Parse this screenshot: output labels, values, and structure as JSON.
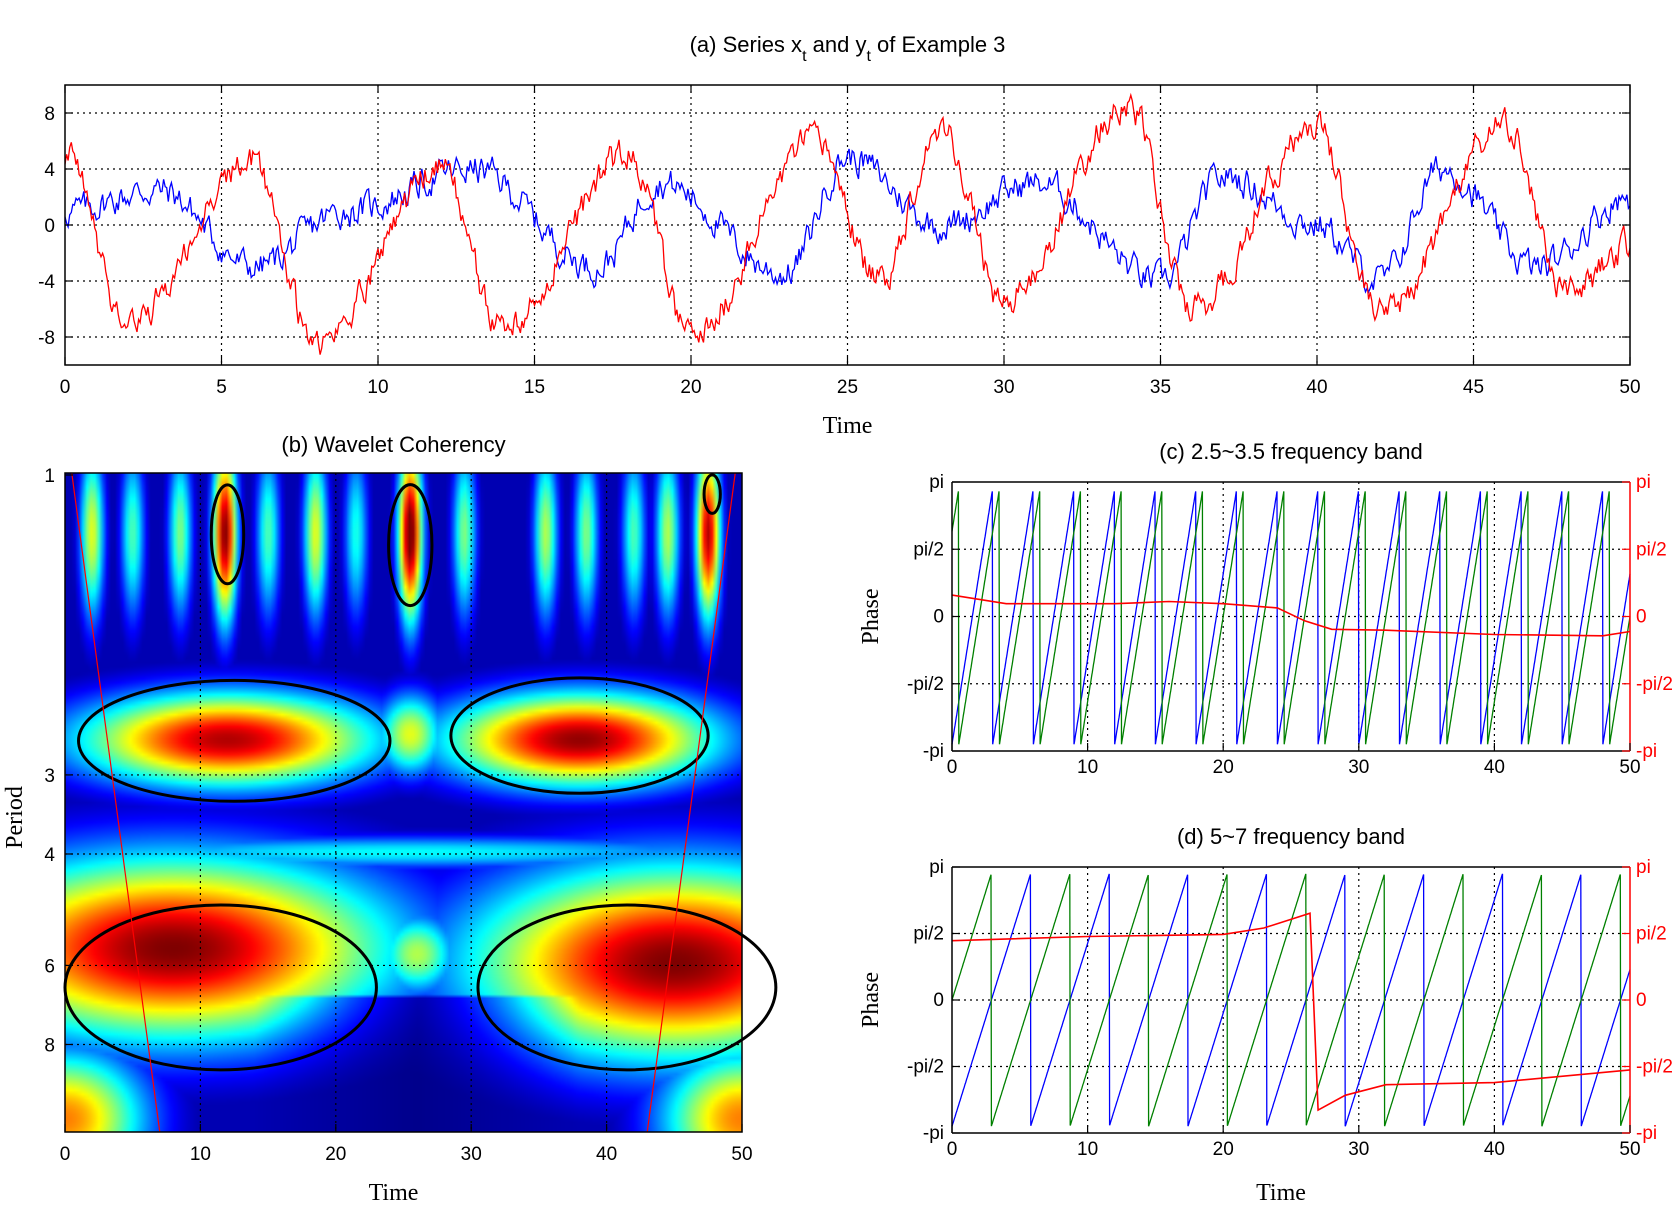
{
  "chart_data": [
    {
      "id": "a",
      "type": "line",
      "title_prefix": "(a)  Series x",
      "title_sub1": "t",
      "title_mid": " and y",
      "title_sub2": "t",
      "title_suffix": " of Example 3",
      "xlabel": "Time",
      "xlim": [
        0,
        50
      ],
      "ylim": [
        -10,
        10
      ],
      "xticks": [
        0,
        5,
        10,
        15,
        20,
        25,
        30,
        35,
        40,
        45,
        50
      ],
      "yticks": [
        8,
        4,
        0,
        -4,
        -8
      ],
      "grid": true,
      "series": [
        {
          "color": "#0000ff",
          "period_t": 6.0,
          "amplitude": 2.8,
          "phase": 0.6,
          "noise": 1.4,
          "key_points": [
            [
              0,
              1.0
            ],
            [
              3,
              2.5
            ],
            [
              6,
              -3.0
            ],
            [
              9,
              1.0
            ],
            [
              13,
              4.0
            ],
            [
              17,
              -3.0
            ],
            [
              19,
              3.0
            ],
            [
              23,
              -3.5
            ],
            [
              25,
              4.8
            ],
            [
              28,
              0.0
            ],
            [
              31,
              3.0
            ],
            [
              35,
              -4.0
            ],
            [
              37,
              3.5
            ],
            [
              40,
              0.0
            ],
            [
              42,
              -4.0
            ],
            [
              44,
              4.0
            ],
            [
              47,
              -3.0
            ],
            [
              50,
              2.0
            ]
          ]
        },
        {
          "color": "#ff0000",
          "period_t": 6.0,
          "amplitude": 5.5,
          "phase": -1.2,
          "noise": 1.4,
          "key_points": [
            [
              0,
              5.0
            ],
            [
              2,
              -7.0
            ],
            [
              6,
              4.5
            ],
            [
              8,
              -8.5
            ],
            [
              12,
              4.0
            ],
            [
              14,
              -7.5
            ],
            [
              18,
              5.0
            ],
            [
              20,
              -8.0
            ],
            [
              24,
              6.0
            ],
            [
              26,
              -4.0
            ],
            [
              28,
              7.0
            ],
            [
              30,
              -5.5
            ],
            [
              34,
              8.5
            ],
            [
              36,
              -6.0
            ],
            [
              40,
              7.0
            ],
            [
              42,
              -6.5
            ],
            [
              46,
              7.0
            ],
            [
              48,
              -5.0
            ],
            [
              50,
              -1.5
            ]
          ]
        }
      ]
    },
    {
      "id": "b",
      "type": "heatmap",
      "title": "(b)  Wavelet Coherency",
      "xlabel": "Time",
      "ylabel": "Period",
      "xlim": [
        0,
        50
      ],
      "xticks": [
        0,
        10,
        20,
        30,
        40,
        50
      ],
      "yticks": [
        1,
        3,
        4,
        6,
        8
      ],
      "period_range": [
        1,
        11
      ],
      "colormap": "jet",
      "high_regions": [
        {
          "t": [
            11,
            13
          ],
          "period": [
            1.05,
            1.55
          ],
          "label": "cluster-1"
        },
        {
          "t": [
            24,
            27
          ],
          "period": [
            1.0,
            1.8
          ],
          "label": "cluster-2"
        },
        {
          "t": [
            47,
            48.5
          ],
          "period": [
            1.0,
            1.2
          ],
          "label": "cluster-3"
        },
        {
          "t": [
            0,
            24
          ],
          "period": [
            2.1,
            3.2
          ],
          "label": "band-3"
        },
        {
          "t": [
            28,
            48
          ],
          "period": [
            2.1,
            3.2
          ],
          "label": "band-3b"
        },
        {
          "t": [
            0,
            23
          ],
          "period": [
            4.6,
            8.5
          ],
          "label": "band-6"
        },
        {
          "t": [
            31,
            50
          ],
          "period": [
            4.6,
            9.0
          ],
          "label": "band-6b"
        }
      ]
    },
    {
      "id": "c",
      "type": "line",
      "title": "(c)  2.5~3.5 frequency band",
      "ylabel": "Phase",
      "xlim": [
        0,
        50
      ],
      "xticks": [
        0,
        10,
        20,
        30,
        40,
        50
      ],
      "yticks": [
        "pi",
        "pi/2",
        "0",
        "-pi/2",
        "-pi"
      ],
      "yticks_right": [
        "pi",
        "pi/2",
        "0",
        "-pi/2",
        "-pi"
      ],
      "series": [
        {
          "color": "#0000ff",
          "kind": "sawtooth",
          "period_t": 3.0,
          "offset": 0.0
        },
        {
          "color": "#008000",
          "kind": "sawtooth",
          "period_t": 3.0,
          "offset": 0.5
        },
        {
          "color": "#ff0000",
          "kind": "path",
          "points": [
            [
              0,
              0.5
            ],
            [
              4,
              0.3
            ],
            [
              12,
              0.3
            ],
            [
              16,
              0.35
            ],
            [
              20,
              0.3
            ],
            [
              24,
              0.2
            ],
            [
              26,
              -0.1
            ],
            [
              28,
              -0.3
            ],
            [
              32,
              -0.32
            ],
            [
              40,
              -0.42
            ],
            [
              48,
              -0.45
            ],
            [
              50,
              -0.35
            ]
          ]
        }
      ]
    },
    {
      "id": "d",
      "type": "line",
      "title": "(d)  5~7 frequency band",
      "xlabel": "Time",
      "ylabel": "Phase",
      "xlim": [
        0,
        50
      ],
      "xticks": [
        0,
        10,
        20,
        30,
        40,
        50
      ],
      "yticks": [
        "pi",
        "pi/2",
        "0",
        "-pi/2",
        "-pi"
      ],
      "yticks_right": [
        "pi",
        "pi/2",
        "0",
        "-pi/2",
        "-pi"
      ],
      "series": [
        {
          "color": "#0000ff",
          "kind": "sawtooth",
          "period_t": 5.8,
          "offset": 0.0
        },
        {
          "color": "#008000",
          "kind": "sawtooth",
          "period_t": 5.8,
          "offset": 2.9
        },
        {
          "color": "#ff0000",
          "kind": "path",
          "points": [
            [
              0,
              1.4
            ],
            [
              10,
              1.5
            ],
            [
              20,
              1.55
            ],
            [
              23,
              1.7
            ],
            [
              26.4,
              2.05
            ],
            [
              27,
              -2.6
            ],
            [
              29,
              -2.25
            ],
            [
              32,
              -2.0
            ],
            [
              40,
              -1.95
            ],
            [
              50,
              -1.65
            ]
          ]
        }
      ]
    }
  ]
}
